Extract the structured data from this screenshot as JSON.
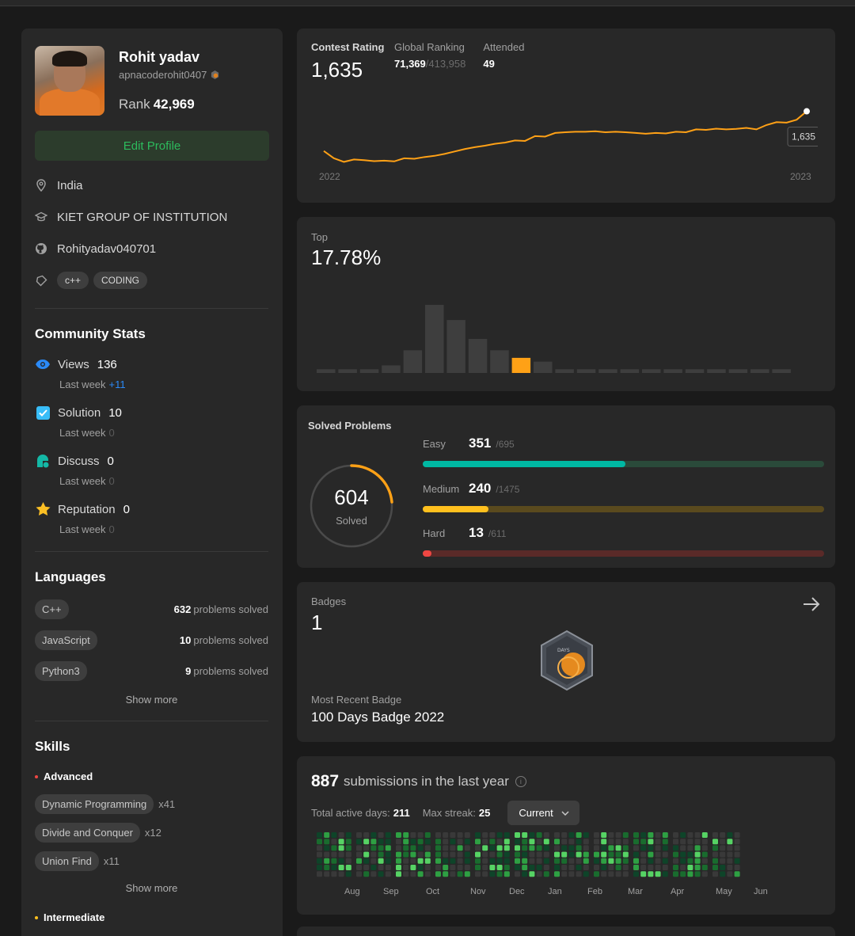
{
  "profile": {
    "name": "Rohit yadav",
    "username": "apnacoderohit0407",
    "rank_label": "Rank",
    "rank_value": "42,969",
    "edit_button": "Edit Profile",
    "location": "India",
    "school": "KIET GROUP OF INSTITUTION",
    "github": "Rohityadav040701",
    "tags": [
      "c++",
      "CODING"
    ]
  },
  "community": {
    "title": "Community Stats",
    "items": [
      {
        "label": "Views",
        "value": "136",
        "sub": "Last week",
        "delta": "+11",
        "icon": "eye-icon",
        "color": "#2b8af7"
      },
      {
        "label": "Solution",
        "value": "10",
        "sub": "Last week",
        "delta": "0",
        "icon": "checkbox-icon",
        "color": "#38bdf8"
      },
      {
        "label": "Discuss",
        "value": "0",
        "sub": "Last week",
        "delta": "0",
        "icon": "chat-icon",
        "color": "#14b8a6"
      },
      {
        "label": "Reputation",
        "value": "0",
        "sub": "Last week",
        "delta": "0",
        "icon": "star-icon",
        "color": "#fbbf24"
      }
    ]
  },
  "languages": {
    "title": "Languages",
    "items": [
      {
        "name": "C++",
        "count": "632",
        "suffix": "problems solved"
      },
      {
        "name": "JavaScript",
        "count": "10",
        "suffix": "problems solved"
      },
      {
        "name": "Python3",
        "count": "9",
        "suffix": "problems solved"
      }
    ],
    "show_more": "Show more"
  },
  "skills": {
    "title": "Skills",
    "advanced_label": "Advanced",
    "items": [
      {
        "name": "Dynamic Programming",
        "count": "x41"
      },
      {
        "name": "Divide and Conquer",
        "count": "x12"
      },
      {
        "name": "Union Find",
        "count": "x11"
      }
    ],
    "show_more": "Show more",
    "intermediate_label": "Intermediate"
  },
  "contest": {
    "rating_label": "Contest Rating",
    "rating_value": "1,635",
    "ranking_label": "Global Ranking",
    "ranking_value": "71,369",
    "ranking_total": "/413,958",
    "attended_label": "Attended",
    "attended_value": "49",
    "year_start": "2022",
    "year_end": "2023",
    "tooltip": "1,635"
  },
  "top": {
    "label": "Top",
    "value": "17.78%"
  },
  "solved": {
    "label": "Solved Problems",
    "total": "604",
    "total_label": "Solved",
    "easy": {
      "name": "Easy",
      "solved": "351",
      "total": "/695"
    },
    "medium": {
      "name": "Medium",
      "solved": "240",
      "total": "/1475"
    },
    "hard": {
      "name": "Hard",
      "solved": "13",
      "total": "/611"
    }
  },
  "badges": {
    "label": "Badges",
    "count": "1",
    "badge_text": "DAYS",
    "recent_label": "Most Recent Badge",
    "recent_name": "100 Days Badge 2022"
  },
  "submissions": {
    "count": "887",
    "title_suffix": "submissions in the last year",
    "active_label": "Total active days:",
    "active_value": "211",
    "streak_label": "Max streak:",
    "streak_value": "25",
    "dropdown": "Current",
    "months": [
      "Aug",
      "Sep",
      "Oct",
      "Nov",
      "Dec",
      "Jan",
      "Feb",
      "Mar",
      "Apr",
      "May",
      "Jun"
    ]
  },
  "colors": {
    "accent_green": "#2cbb5d",
    "easy": "#00b8a3",
    "medium": "#ffc01e",
    "hard": "#ef4743",
    "rating_line": "#ffa116"
  },
  "chart_data": [
    {
      "type": "line",
      "title": "Contest Rating",
      "x": [
        "2022",
        "",
        "",
        "",
        "",
        "",
        "",
        "",
        "",
        "",
        "",
        "",
        "",
        "",
        "",
        "",
        "",
        "",
        "",
        "",
        "",
        "",
        "",
        "",
        "",
        "",
        "",
        "",
        "",
        "",
        "",
        "",
        "",
        "",
        "",
        "",
        "",
        "",
        "",
        "",
        "",
        "",
        "",
        "",
        "",
        "",
        "",
        "",
        "2023"
      ],
      "values": [
        1470,
        1440,
        1425,
        1435,
        1432,
        1428,
        1430,
        1427,
        1440,
        1438,
        1445,
        1450,
        1458,
        1468,
        1478,
        1486,
        1492,
        1500,
        1505,
        1514,
        1512,
        1532,
        1530,
        1545,
        1548,
        1550,
        1550,
        1552,
        1548,
        1550,
        1548,
        1545,
        1542,
        1545,
        1543,
        1550,
        1548,
        1560,
        1558,
        1563,
        1560,
        1562,
        1566,
        1560,
        1578,
        1590,
        1588,
        1600,
        1635
      ],
      "series_name": ""
    },
    {
      "type": "bar",
      "title": "Top",
      "values": [
        1,
        1,
        1,
        2,
        6,
        18,
        14,
        9,
        6,
        4,
        3,
        1,
        1,
        1,
        1,
        1,
        1,
        1,
        1,
        1,
        1,
        1
      ],
      "highlight_index": 9
    }
  ]
}
